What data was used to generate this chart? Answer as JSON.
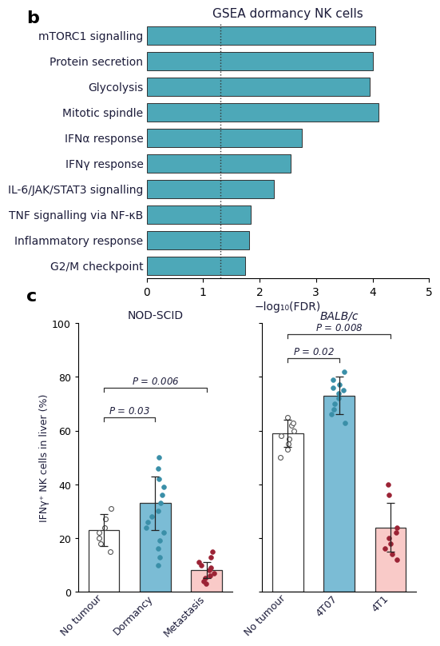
{
  "panel_b": {
    "title": "GSEA dormancy NK cells",
    "categories": [
      "G2/M checkpoint",
      "Inflammatory response",
      "TNF signalling via NF-κB",
      "IL-6/JAK/STAT3 signalling",
      "IFNγ response",
      "IFNα response",
      "Mitotic spindle",
      "Glycolysis",
      "Protein secretion",
      "mTORC1 signalling"
    ],
    "values": [
      4.05,
      4.0,
      3.95,
      4.1,
      2.75,
      2.55,
      2.25,
      1.85,
      1.82,
      1.75
    ],
    "bar_color": "#4da8b8",
    "xlabel": "−log₁₀(FDR)",
    "xlim": [
      0,
      5
    ],
    "dotted_line_x": 1.3,
    "xticks": [
      0,
      1,
      2,
      3,
      4,
      5
    ]
  },
  "panel_c": {
    "ylabel": "IFNγ⁺ NK cells in liver (%)",
    "ylim": [
      0,
      100
    ],
    "yticks": [
      0,
      20,
      40,
      60,
      80,
      100
    ],
    "group1_title": "NOD-SCID",
    "group2_title": "BALB/c",
    "bar_labels": [
      "No tumour",
      "Dormancy",
      "Metastasis",
      "No tumour",
      "4T07",
      "4T1"
    ],
    "bar_heights": [
      23,
      33,
      8,
      59,
      73,
      24
    ],
    "bar_colors": [
      "#ffffff",
      "#7bbcd5",
      "#f9cac8",
      "#ffffff",
      "#7bbcd5",
      "#f9cac8"
    ],
    "nod_dots": {
      "nt": [
        15,
        18,
        20,
        22,
        24,
        27,
        31
      ],
      "dorm": [
        10,
        13,
        16,
        19,
        22,
        24,
        26,
        28,
        30,
        33,
        36,
        39,
        42,
        46,
        50
      ],
      "meta": [
        3,
        4,
        5,
        6,
        7,
        8,
        9,
        10,
        11,
        13,
        15
      ]
    },
    "balb_dots": {
      "nt": [
        50,
        53,
        55,
        57,
        58,
        60,
        62,
        63,
        65
      ],
      "t07": [
        63,
        66,
        68,
        70,
        72,
        74,
        75,
        76,
        77,
        79,
        82
      ],
      "t1": [
        12,
        14,
        16,
        18,
        20,
        22,
        24,
        36,
        40
      ]
    },
    "nod_errorbars": [
      [
        23,
        6
      ],
      [
        33,
        10
      ],
      [
        8,
        3
      ]
    ],
    "balb_errorbars": [
      [
        59,
        5
      ],
      [
        73,
        7
      ],
      [
        24,
        9
      ]
    ]
  },
  "text_color": "#1c1c3a",
  "label_b_fontsize": 10,
  "title_fontsize": 11
}
